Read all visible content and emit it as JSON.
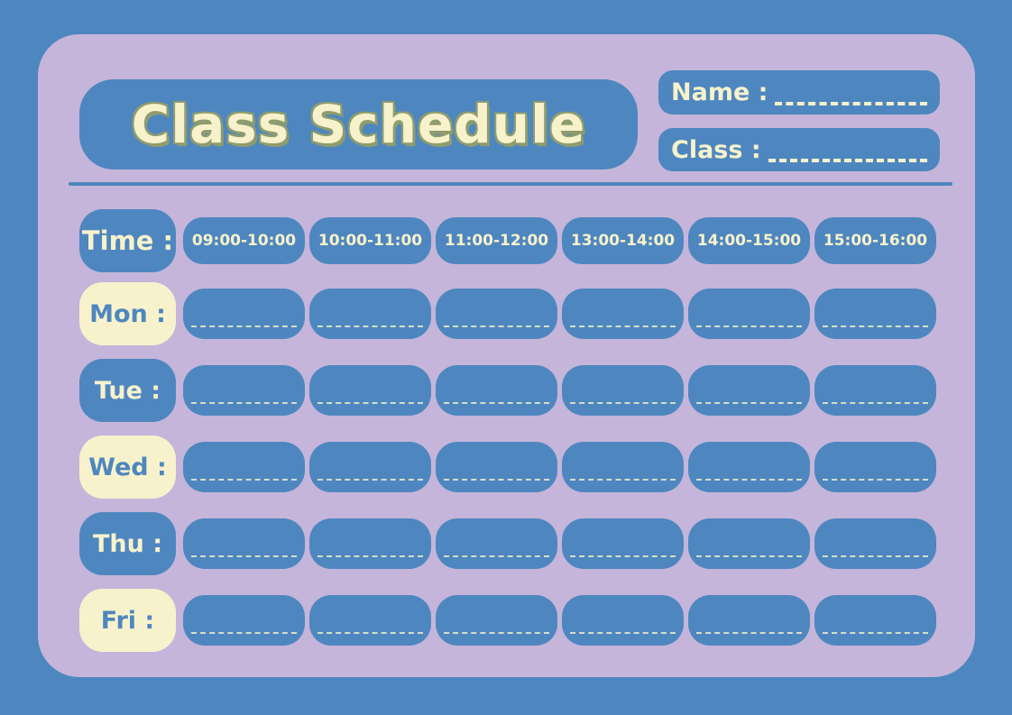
{
  "header": {
    "title": "Class Schedule",
    "name_label": "Name :",
    "name_value": "",
    "class_label": "Class :",
    "class_value": ""
  },
  "schedule": {
    "time_label": "Time :",
    "time_slots": [
      "09:00-10:00",
      "10:00-11:00",
      "11:00-12:00",
      "13:00-14:00",
      "14:00-15:00",
      "15:00-16:00"
    ],
    "days": [
      {
        "label": "Mon :",
        "variant": "cream",
        "entries": [
          "",
          "",
          "",
          "",
          "",
          ""
        ]
      },
      {
        "label": "Tue :",
        "variant": "blue",
        "entries": [
          "",
          "",
          "",
          "",
          "",
          ""
        ]
      },
      {
        "label": "Wed :",
        "variant": "cream",
        "entries": [
          "",
          "",
          "",
          "",
          "",
          ""
        ]
      },
      {
        "label": "Thu :",
        "variant": "blue",
        "entries": [
          "",
          "",
          "",
          "",
          "",
          ""
        ]
      },
      {
        "label": "Fri :",
        "variant": "cream",
        "entries": [
          "",
          "",
          "",
          "",
          "",
          ""
        ]
      }
    ]
  },
  "colors": {
    "blue": "#4e87bf",
    "lavender": "#c5b5da",
    "cream": "#f8f2cc",
    "outline": "#8f9c6e"
  }
}
